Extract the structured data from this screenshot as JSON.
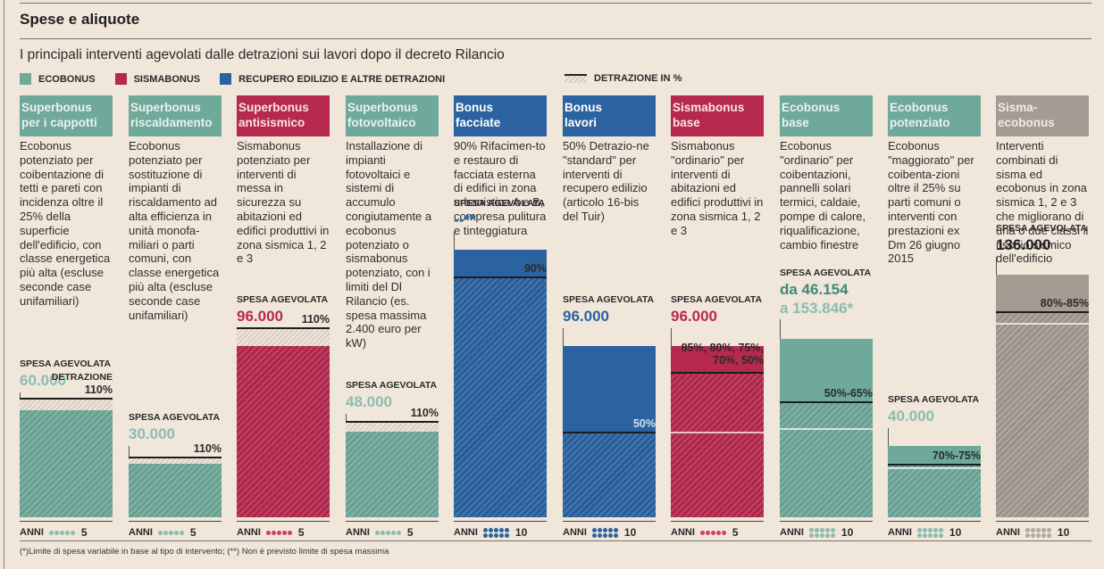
{
  "header": {
    "title": "Spese e aliquote",
    "subtitle": "I principali interventi agevolati dalle detrazioni sui lavori dopo il decreto Rilancio"
  },
  "legend": {
    "items": [
      {
        "label": "ECOBONUS",
        "color": "#6fa99a"
      },
      {
        "label": "SISMABONUS",
        "color": "#b6294f"
      },
      {
        "label": "RECUPERO EDILIZIO E ALTRE DETRAZIONI",
        "color": "#2b63a0"
      }
    ],
    "detrazione_label": "DETRAZIONE IN %"
  },
  "colors": {
    "ecobonus": "#6fa99a",
    "sismabonus": "#b6294f",
    "recupero": "#2b63a0",
    "sismaecobonus": "#a49b93",
    "ecobonus_text": "#8cbcb0",
    "ecobonus_dark_text": "#3f8a77"
  },
  "spesa_label": "SPESA AGEVOLATA",
  "anni_label": "ANNI",
  "chart_data": {
    "type": "bar",
    "title": "Spese e aliquote",
    "subtitle": "I principali interventi agevolati dalle detrazioni sui lavori dopo il decreto Rilancio",
    "categories": [
      "Superbonus per i cappotti",
      "Superbonus riscaldamento",
      "Superbonus antisismico",
      "Superbonus fotovoltaico",
      "Bonus facciate",
      "Bonus lavori",
      "Sismabonus base",
      "Ecobonus base",
      "Ecobonus potenziato",
      "Sisma-ecobonus"
    ],
    "series": [
      {
        "name": "Spesa agevolata (euro)",
        "values": [
          60000,
          30000,
          96000,
          48000,
          null,
          96000,
          96000,
          153846,
          40000,
          136000
        ]
      },
      {
        "name": "Detrazione (%)",
        "values": [
          "110%",
          "110%",
          "110%",
          "110%",
          "90%",
          "50%",
          "85%, 80%, 75%, 70%, 50%",
          "50%-65%",
          "70%-75%",
          "80%-85%"
        ]
      },
      {
        "name": "Anni",
        "values": [
          5,
          5,
          5,
          5,
          10,
          10,
          5,
          10,
          10,
          10
        ]
      }
    ],
    "legend": [
      "Ecobonus",
      "Sismabonus",
      "Recupero edilizio e altre detrazioni",
      "Detrazione in %"
    ],
    "legend_position": "top"
  },
  "columns": [
    {
      "title": [
        "Superbonus",
        "per i cappotti"
      ],
      "group": "ecobonus",
      "desc": "Ecobonus potenziato per coibentazione di tetti e pareti con incidenza oltre il 25% della superficie dell'edificio, con classe energetica più alta (escluse seconde case unifamiliari)",
      "amount": "60.000",
      "amount2": "",
      "detrazione_word": "DETRAZIONE",
      "pct": "110%",
      "spesa": 60000,
      "detr_low": 1.0,
      "detr_high": 1.1,
      "years": 5,
      "anni": "5"
    },
    {
      "title": [
        "Superbonus",
        "riscaldamento"
      ],
      "group": "ecobonus",
      "desc": "Ecobonus potenziato per sostituzione di impianti di riscaldamento ad alta efficienza in unità monofa-miliari o parti comuni, con classe energetica più alta (escluse seconde case unifamiliari)",
      "amount": "30.000",
      "amount2": "",
      "detrazione_word": "",
      "pct": "110%",
      "spesa": 30000,
      "detr_low": 1.0,
      "detr_high": 1.1,
      "years": 5,
      "anni": "5"
    },
    {
      "title": [
        "Superbonus",
        "antisismico"
      ],
      "group": "sismabonus",
      "desc": "Sismabonus potenziato per interventi di messa in sicurezza su abitazioni ed edifici produttivi in zona sismica 1, 2 e 3",
      "amount": "96.000",
      "amount2": "",
      "detrazione_word": "",
      "pct": "110%",
      "spesa": 96000,
      "detr_low": 1.0,
      "detr_high": 1.1,
      "years": 5,
      "anni": "5"
    },
    {
      "title": [
        "Superbonus",
        "fotovoltaico"
      ],
      "group": "ecobonus",
      "desc": "Installazione di impianti fotovoltaici e sistemi di accumulo congiutamente a ecobonus potenziato o sismabonus potenziato, con i limiti del Dl Rilancio (es. spesa massima 2.400 euro per kW)",
      "amount": "48.000",
      "amount2": "",
      "detrazione_word": "",
      "pct": "110%",
      "spesa": 48000,
      "detr_low": 1.0,
      "detr_high": 1.1,
      "years": 5,
      "anni": "5"
    },
    {
      "title": [
        "Bonus",
        "facciate"
      ],
      "group": "recupero",
      "desc": "90% Rifacimen-to e restauro di facciata esterna di edifici in zona urbanistica A e B, compresa pulitura e tinteggiatura",
      "amount": "--**",
      "amount2": "",
      "detrazione_word": "",
      "pct": "90%",
      "spesa": 150000,
      "detr_low": 0.9,
      "detr_high": 0.9,
      "years": 10,
      "anni": "10"
    },
    {
      "title": [
        "Bonus",
        "lavori"
      ],
      "group": "recupero",
      "desc": "50% Detrazio-ne \"standard\" per interventi di recupero edilizio (articolo 16-bis del Tuir)",
      "amount": "96.000",
      "amount2": "",
      "detrazione_word": "",
      "pct": "50%",
      "spesa": 96000,
      "detr_low": 0.5,
      "detr_high": 0.5,
      "years": 10,
      "anni": "10"
    },
    {
      "title": [
        "Sismabonus",
        "base"
      ],
      "group": "sismabonus",
      "desc": "Sismabonus \"ordinario\" per interventi di abitazioni ed edifici produttivi in zona sismica 1, 2 e 3",
      "amount": "96.000",
      "amount2": "",
      "detrazione_word": "",
      "pct": "85%, 80%, 75%, 70%, 50%",
      "spesa": 96000,
      "detr_low": 0.5,
      "detr_high": 0.85,
      "years": 5,
      "anni": "5"
    },
    {
      "title": [
        "Ecobonus",
        "base"
      ],
      "group": "ecobonus",
      "desc": "Ecobonus \"ordinario\" per coibentazioni, pannelli solari termici, caldaie, pompe di calore, riqualificazione, cambio finestre",
      "amount": "da 46.154",
      "amount2": "a 153.846*",
      "detrazione_word": "",
      "pct": "50%-65%",
      "spesa": 100000,
      "detr_low": 0.5,
      "detr_high": 0.65,
      "years": 10,
      "anni": "10"
    },
    {
      "title": [
        "Ecobonus",
        "potenziato"
      ],
      "group": "ecobonus",
      "desc": "Ecobonus \"maggiorato\" per coibenta-zioni oltre il 25% su parti comuni o interventi con prestazioni ex Dm 26 giugno 2015",
      "amount": "40.000",
      "amount2": "",
      "detrazione_word": "",
      "pct": "70%-75%",
      "spesa": 40000,
      "detr_low": 0.7,
      "detr_high": 0.75,
      "years": 10,
      "anni": "10"
    },
    {
      "title": [
        "Sisma-",
        "ecobonus"
      ],
      "group": "sismaecobonus",
      "desc": "Interventi combinati di sisma ed ecobonus in zona sismica 1, 2 e 3 che migliorano di una o due classi il rischio sismico dell'edificio",
      "amount": "136.000",
      "amount2": "",
      "detrazione_word": "",
      "pct": "80%-85%",
      "spesa": 136000,
      "detr_low": 0.8,
      "detr_high": 0.85,
      "years": 10,
      "anni": "10"
    }
  ],
  "footnote": "(*)Limite di spesa variabile in base al tipo di intervento; (**) Non è previsto limite di spesa massima"
}
